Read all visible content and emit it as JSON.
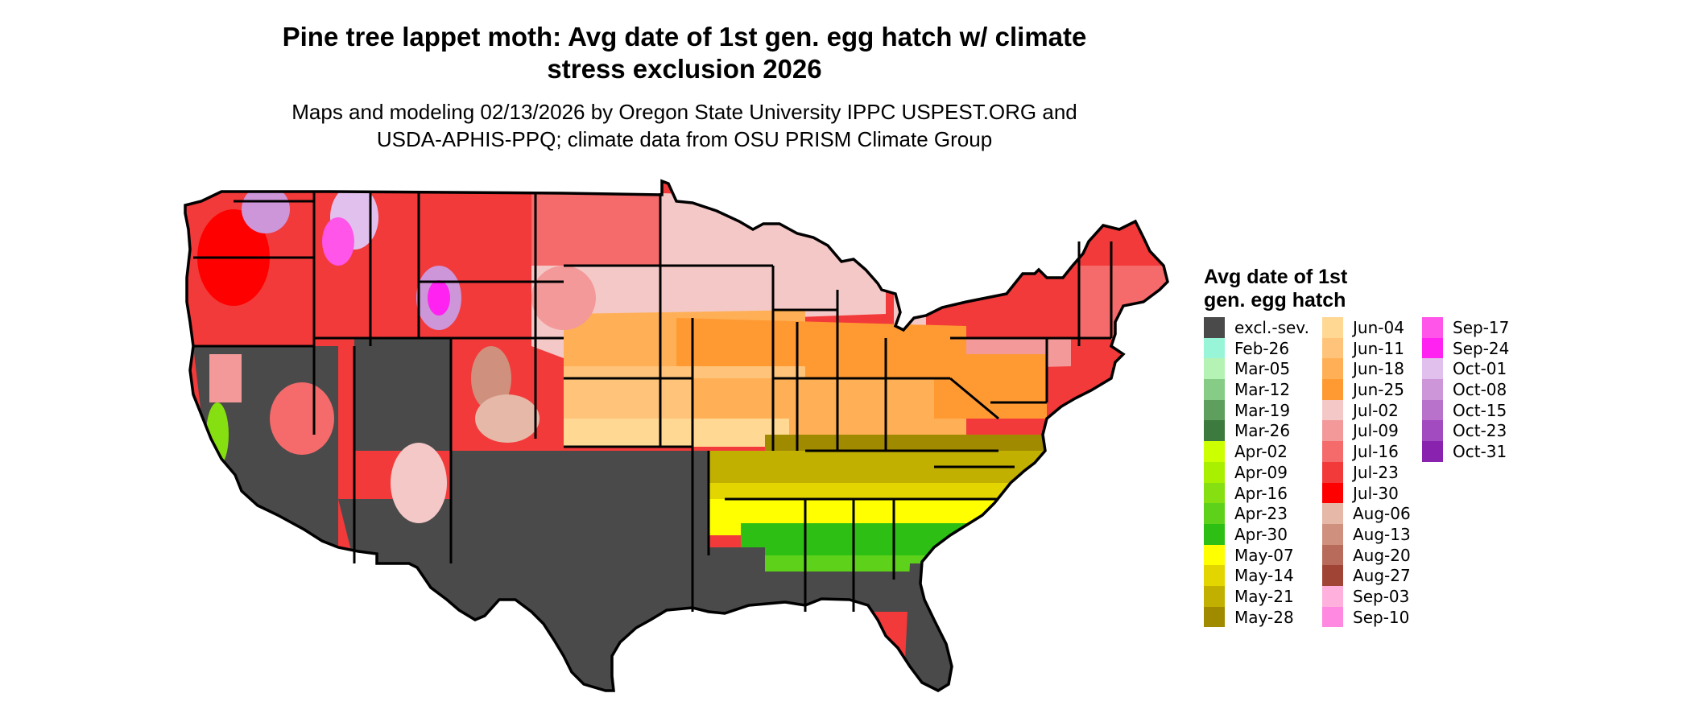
{
  "title_line1": "Pine tree lappet moth: Avg date of 1st gen. egg hatch w/ climate",
  "title_line2": "stress exclusion 2026",
  "subtitle_line1": "Maps and modeling 02/13/2026 by Oregon State University IPPC USPEST.ORG and",
  "subtitle_line2": "USDA-APHIS-PPQ; climate data from OSU PRISM Climate Group",
  "legend": {
    "title_line1": "Avg date of 1st",
    "title_line2": "gen. egg hatch",
    "columns": [
      [
        {
          "label": "excl.-sev.",
          "color": "#4a4a4a"
        },
        {
          "label": "Feb-26",
          "color": "#99f5d8"
        },
        {
          "label": "Mar-05",
          "color": "#b4f3b4"
        },
        {
          "label": "Mar-12",
          "color": "#86cc86"
        },
        {
          "label": "Mar-19",
          "color": "#5e9f5e"
        },
        {
          "label": "Mar-26",
          "color": "#3d7a3d"
        },
        {
          "label": "Apr-02",
          "color": "#ccff00"
        },
        {
          "label": "Apr-09",
          "color": "#a9ef00"
        },
        {
          "label": "Apr-16",
          "color": "#86df10"
        },
        {
          "label": "Apr-23",
          "color": "#5ed21a"
        },
        {
          "label": "Apr-30",
          "color": "#2ebf14"
        },
        {
          "label": "May-07",
          "color": "#ffff00"
        },
        {
          "label": "May-14",
          "color": "#e3d600"
        },
        {
          "label": "May-21",
          "color": "#c2b000"
        },
        {
          "label": "May-28",
          "color": "#a08a00"
        }
      ],
      [
        {
          "label": "Jun-04",
          "color": "#ffd894"
        },
        {
          "label": "Jun-11",
          "color": "#ffc47a"
        },
        {
          "label": "Jun-18",
          "color": "#ffaf55"
        },
        {
          "label": "Jun-25",
          "color": "#ff9a33"
        },
        {
          "label": "Jul-02",
          "color": "#f5c8c8"
        },
        {
          "label": "Jul-09",
          "color": "#f39999"
        },
        {
          "label": "Jul-16",
          "color": "#f56a6a"
        },
        {
          "label": "Jul-23",
          "color": "#f23a3a"
        },
        {
          "label": "Jul-30",
          "color": "#ff0000"
        },
        {
          "label": "Aug-06",
          "color": "#e6b8a8"
        },
        {
          "label": "Aug-13",
          "color": "#d0907e"
        },
        {
          "label": "Aug-20",
          "color": "#b86b5a"
        },
        {
          "label": "Aug-27",
          "color": "#a04535"
        },
        {
          "label": "Sep-03",
          "color": "#ffb0dc"
        },
        {
          "label": "Sep-10",
          "color": "#ff88e0"
        }
      ],
      [
        {
          "label": "Sep-17",
          "color": "#ff55e8"
        },
        {
          "label": "Sep-24",
          "color": "#ff22f0"
        },
        {
          "label": "Oct-01",
          "color": "#e2c0ee"
        },
        {
          "label": "Oct-08",
          "color": "#cc96d8"
        },
        {
          "label": "Oct-15",
          "color": "#b872cc"
        },
        {
          "label": "Oct-23",
          "color": "#a24ac0"
        },
        {
          "label": "Oct-31",
          "color": "#8a22b0"
        }
      ]
    ]
  }
}
